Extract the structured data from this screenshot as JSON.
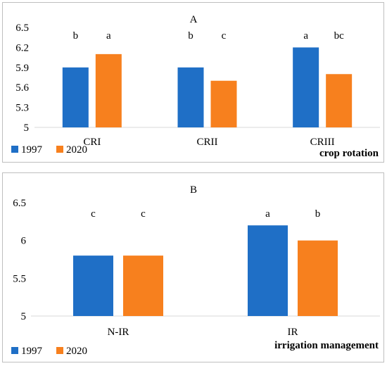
{
  "chart_data": [
    {
      "type": "bar",
      "title": "A",
      "xlabel": "crop rotation",
      "ylabel": "",
      "categories": [
        "CRI",
        "CRII",
        "CRIII"
      ],
      "ylim": [
        5,
        6.5
      ],
      "yticks": [
        "6.5",
        "6.2",
        "5.9",
        "5.6",
        "5.3",
        "5"
      ],
      "series": [
        {
          "name": "1997",
          "color": "#1F6FC6",
          "values": [
            5.9,
            5.9,
            6.2
          ],
          "letters": [
            "b",
            "b",
            "a"
          ]
        },
        {
          "name": "2020",
          "color": "#F7801E",
          "values": [
            6.1,
            5.7,
            5.8
          ],
          "letters": [
            "a",
            "c",
            "bc"
          ]
        }
      ],
      "grid": false,
      "legend": "bottom-left"
    },
    {
      "type": "bar",
      "title": "B",
      "xlabel": "irrigation management",
      "ylabel": "",
      "categories": [
        "N-IR",
        "IR"
      ],
      "ylim": [
        5,
        6.5
      ],
      "yticks": [
        "6.5",
        "6",
        "5.5",
        "5"
      ],
      "series": [
        {
          "name": "1997",
          "color": "#1F6FC6",
          "values": [
            5.8,
            6.2
          ],
          "letters": [
            "c",
            "a"
          ]
        },
        {
          "name": "2020",
          "color": "#F7801E",
          "values": [
            5.8,
            6.0
          ],
          "letters": [
            "c",
            "b"
          ]
        }
      ],
      "grid": false,
      "legend": "bottom-left"
    }
  ]
}
